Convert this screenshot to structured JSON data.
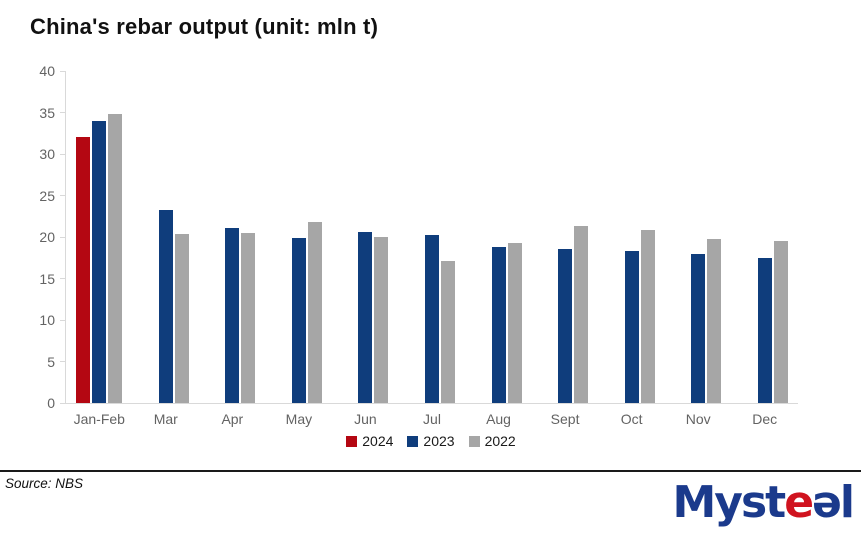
{
  "chart_data": {
    "type": "bar",
    "title": "China's rebar output (unit: mln t)",
    "categories": [
      "Jan-Feb",
      "Mar",
      "Apr",
      "May",
      "Jun",
      "Jul",
      "Aug",
      "Sept",
      "Oct",
      "Nov",
      "Dec"
    ],
    "series": [
      {
        "name": "2024",
        "color": "#b40712",
        "values": [
          32.1,
          null,
          null,
          null,
          null,
          null,
          null,
          null,
          null,
          null,
          null
        ]
      },
      {
        "name": "2023",
        "color": "#0f3d7c",
        "values": [
          34.0,
          23.3,
          21.1,
          19.9,
          20.6,
          20.2,
          18.8,
          18.5,
          18.3,
          17.9,
          17.5
        ]
      },
      {
        "name": "2022",
        "color": "#a6a6a6",
        "values": [
          34.8,
          20.4,
          20.5,
          21.8,
          20.0,
          17.1,
          19.3,
          21.3,
          20.9,
          19.8,
          19.5
        ]
      }
    ],
    "xlabel": "",
    "ylabel": "",
    "ylim": [
      0,
      40
    ],
    "yticks": [
      0,
      5,
      10,
      15,
      20,
      25,
      30,
      35,
      40
    ],
    "grid": false,
    "legend_position": "bottom-center"
  },
  "footer": {
    "source": "Source: NBS"
  },
  "logo": {
    "part1": "Myst",
    "part2": "e",
    "part3": "ə",
    "part4": "l",
    "blue": "#1b3a8c",
    "red": "#d0131f"
  }
}
